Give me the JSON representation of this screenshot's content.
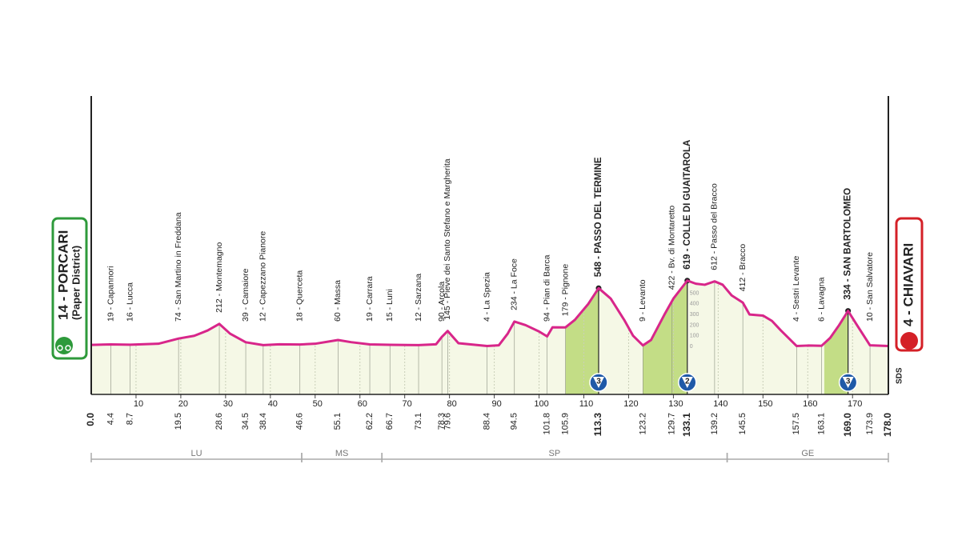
{
  "chart_data": {
    "type": "area",
    "color": "#d8268a",
    "fill": "#f5f8e6",
    "climb_fill": "#c3dd86",
    "xlim": [
      0,
      178
    ],
    "xticks": [
      10,
      20,
      30,
      40,
      50,
      60,
      70,
      80,
      90,
      100,
      110,
      120,
      130,
      140,
      150,
      160,
      170
    ],
    "ylim": [
      0,
      700
    ],
    "yticks": [
      0,
      100,
      200,
      300,
      400,
      500
    ],
    "start": {
      "name": "14 - PORCARI",
      "subtitle": "(Paper District)",
      "km": {
        "value": 0,
        "label": "0.0"
      },
      "color": "#2e9a3b"
    },
    "finish": {
      "name": "4 - CHIAVARI",
      "km": {
        "value": 178,
        "label": "178.0"
      },
      "color": "#d42027"
    },
    "profile": {
      "x": [
        0,
        4.4,
        8.7,
        15,
        19.5,
        23,
        26,
        28.6,
        31,
        34.5,
        38.4,
        42,
        46.6,
        50,
        55.1,
        58,
        62.2,
        66.7,
        73.1,
        77,
        78.3,
        79.6,
        82,
        88.4,
        91,
        93,
        94.5,
        97,
        100,
        101.8,
        103,
        105.9,
        108,
        111,
        113.3,
        116,
        119,
        121,
        123.2,
        125,
        128,
        130,
        133.1,
        135,
        137,
        139.2,
        141,
        143,
        145.5,
        147,
        150,
        152,
        154,
        157.5,
        160,
        163.1,
        165,
        167,
        169,
        171,
        173.9,
        178
      ],
      "values": [
        14,
        19,
        16,
        25,
        74,
        100,
        150,
        212,
        120,
        39,
        12,
        20,
        18,
        25,
        60,
        40,
        19,
        15,
        12,
        20,
        90,
        145,
        30,
        4,
        10,
        120,
        234,
        200,
        140,
        94,
        180,
        179,
        250,
        400,
        548,
        450,
        250,
        100,
        9,
        60,
        300,
        450,
        619,
        590,
        580,
        612,
        580,
        480,
        412,
        300,
        290,
        240,
        150,
        4,
        8,
        6,
        80,
        200,
        334,
        200,
        10,
        4
      ]
    },
    "waypoints": [
      {
        "label": "19 - Capannori",
        "km": 4.4
      },
      {
        "label": "16 - Lucca",
        "km": 8.7
      },
      {
        "label": "74 - San Martino in Freddana",
        "km": 19.5
      },
      {
        "label": "212 - Montemagno",
        "km": 28.6
      },
      {
        "label": "39 - Camaiore",
        "km": 34.5
      },
      {
        "label": "12 - Capezzano Pianore",
        "km": 38.4
      },
      {
        "label": "18 - Querceta",
        "km": 46.6
      },
      {
        "label": "60 - Massa",
        "km": 55.1
      },
      {
        "label": "19 - Carrara",
        "km": 62.2
      },
      {
        "label": "15 - Luni",
        "km": 66.7
      },
      {
        "label": "12 - Sarzana",
        "km": 73.1
      },
      {
        "label": "90 - Arcola",
        "km": 78.3
      },
      {
        "label": "145 - Pieve dei Santo Stefano e Margherita",
        "km": 79.6
      },
      {
        "label": "4 - La Spezia",
        "km": 88.4
      },
      {
        "label": "234 - La Foce",
        "km": 94.5
      },
      {
        "label": "94 - Pian di Barca",
        "km": 101.8
      },
      {
        "label": "179 - Pignone",
        "km": 105.9
      },
      {
        "label": "548 - PASSO DEL TERMINE",
        "km": 113.3,
        "bold": true
      },
      {
        "label": "9 - Levanto",
        "km": 123.2
      },
      {
        "label": "422 - Bv. di Montaretto",
        "km": 129.7
      },
      {
        "label": "619 - COLLE DI GUAITAROLA",
        "km": 133.1,
        "bold": true
      },
      {
        "label": "612 - Passo del Bracco",
        "km": 139.2
      },
      {
        "label": "412 - Bracco",
        "km": 145.5
      },
      {
        "label": "4 - Sestri Levante",
        "km": 157.5
      },
      {
        "label": "6 - Lavagna",
        "km": 163.1
      },
      {
        "label": "334 - SAN BARTOLOMEO",
        "km": {
          "value": 169,
          "label": "169.0"
        },
        "bold": true
      },
      {
        "label": "10 - San Salvatore",
        "km": 173.9
      }
    ],
    "climbs": [
      {
        "category": 3,
        "from": 105.9,
        "to": 113.3
      },
      {
        "category": 2,
        "from": 123.2,
        "to": 133.1
      },
      {
        "category": 3,
        "from": 163.7,
        "to": 169
      }
    ],
    "regions": [
      {
        "name": "LU",
        "from": 0,
        "to": 47
      },
      {
        "name": "MS",
        "from": 47,
        "to": 64.9
      },
      {
        "name": "SP",
        "from": 64.9,
        "to": 142
      },
      {
        "name": "GE",
        "from": 142,
        "to": 178
      }
    ],
    "sponsor_logo": "SDS"
  }
}
